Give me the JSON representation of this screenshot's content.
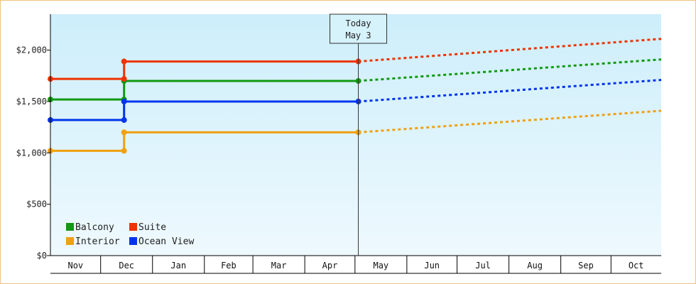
{
  "chart_data": {
    "type": "line",
    "y_ticks": [
      0,
      500,
      1000,
      1500,
      2000
    ],
    "y_tick_labels": [
      "$0",
      "$500",
      "$1,000",
      "$1,500",
      "$2,000"
    ],
    "ylim": [
      0,
      2350
    ],
    "months": [
      "Nov",
      "Dec",
      "Jan",
      "Feb",
      "Mar",
      "Apr",
      "May",
      "Jun",
      "Jul",
      "Aug",
      "Sep",
      "Oct"
    ],
    "today": {
      "line1": "Today",
      "line2": "May 3",
      "date": "2024-05-03"
    },
    "xlim": [
      "2023-11-01",
      "2024-10-31"
    ],
    "legend_position": "bottom-left",
    "series": [
      {
        "name": "Balcony",
        "color": "#119911",
        "points": [
          [
            "2023-11-01",
            1520
          ],
          [
            "2023-12-15",
            1520
          ],
          [
            "2023-12-15",
            1700
          ],
          [
            "2024-05-03",
            1700
          ]
        ],
        "forecast": [
          [
            "2024-05-03",
            1700
          ],
          [
            "2024-10-31",
            1910
          ]
        ]
      },
      {
        "name": "Suite",
        "color": "#ee3300",
        "points": [
          [
            "2023-11-01",
            1720
          ],
          [
            "2023-12-15",
            1720
          ],
          [
            "2023-12-15",
            1890
          ],
          [
            "2024-05-03",
            1890
          ]
        ],
        "forecast": [
          [
            "2024-05-03",
            1890
          ],
          [
            "2024-10-31",
            2110
          ]
        ]
      },
      {
        "name": "Interior",
        "color": "#f0a010",
        "points": [
          [
            "2023-11-01",
            1020
          ],
          [
            "2023-12-15",
            1020
          ],
          [
            "2023-12-15",
            1200
          ],
          [
            "2024-05-03",
            1200
          ]
        ],
        "forecast": [
          [
            "2024-05-03",
            1200
          ],
          [
            "2024-10-31",
            1410
          ]
        ]
      },
      {
        "name": "Ocean View",
        "color": "#0033ee",
        "points": [
          [
            "2023-11-01",
            1320
          ],
          [
            "2023-12-15",
            1320
          ],
          [
            "2023-12-15",
            1500
          ],
          [
            "2024-05-03",
            1500
          ]
        ],
        "forecast": [
          [
            "2024-05-03",
            1500
          ],
          [
            "2024-10-31",
            1710
          ]
        ]
      }
    ],
    "legend": [
      {
        "label": "Balcony",
        "color": "#119911"
      },
      {
        "label": "Suite",
        "color": "#ee3300"
      },
      {
        "label": "Interior",
        "color": "#f0a010"
      },
      {
        "label": "Ocean View",
        "color": "#0033ee"
      }
    ]
  }
}
